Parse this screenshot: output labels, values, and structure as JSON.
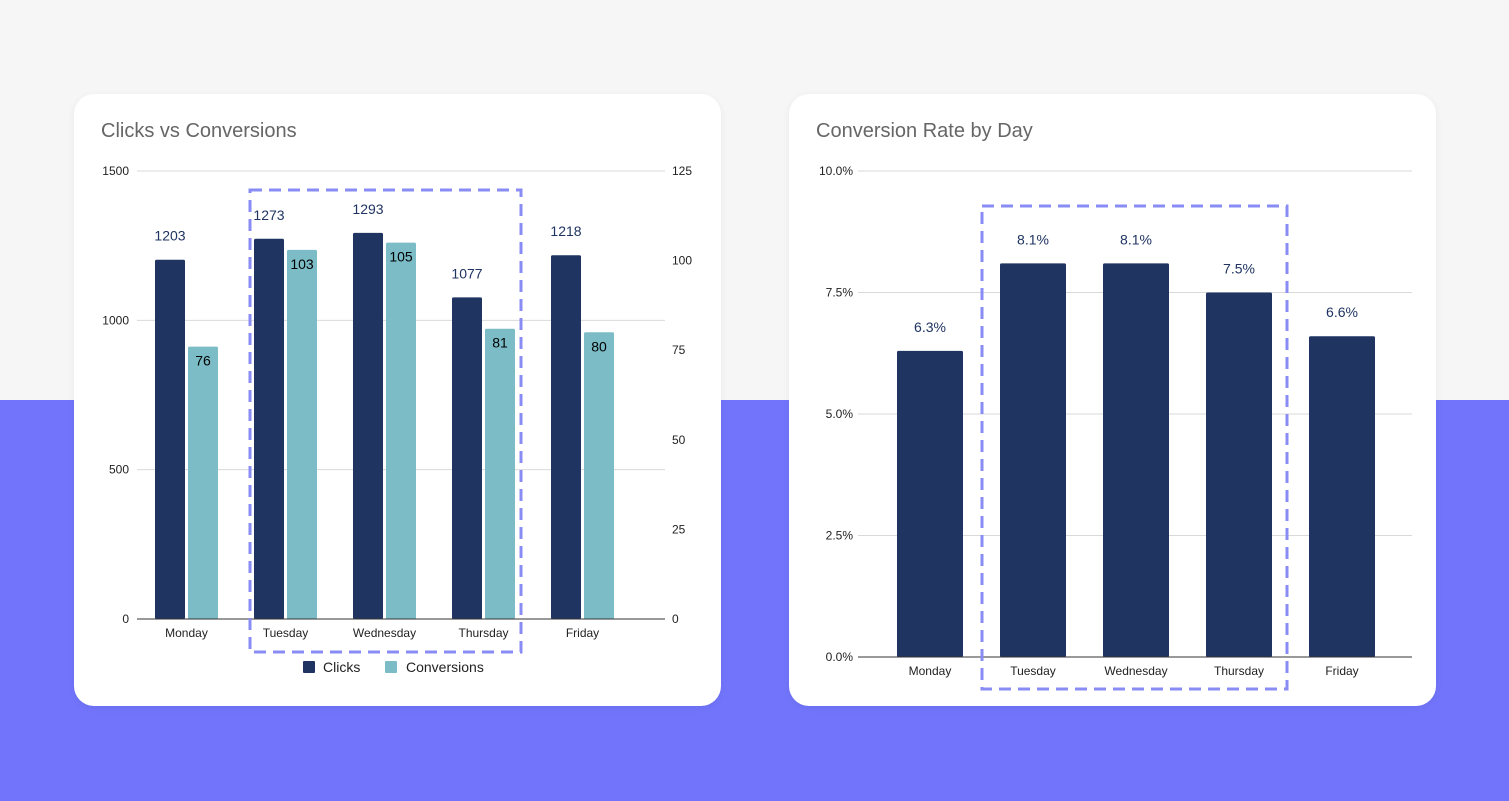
{
  "colors": {
    "page_top": "#f6f6f6",
    "page_bottom": "#7275fb",
    "clicks": "#1f3461",
    "conversions": "#7bbcc6",
    "rate": "#1f3461",
    "highlight": "#8a8cf6",
    "data_label": "#1f3461",
    "grid": "#d9d9d9"
  },
  "chart_data": [
    {
      "type": "bar",
      "title": "Clicks vs Conversions",
      "categories": [
        "Monday",
        "Tuesday",
        "Wednesday",
        "Thursday",
        "Friday"
      ],
      "series": [
        {
          "name": "Clicks",
          "axis": "left",
          "values": [
            1203,
            1273,
            1293,
            1077,
            1218
          ]
        },
        {
          "name": "Conversions",
          "axis": "right",
          "values": [
            76,
            103,
            105,
            81,
            80
          ]
        }
      ],
      "y_left": {
        "min": 0,
        "max": 1500,
        "ticks": [
          "0",
          "500",
          "1000",
          "1500"
        ]
      },
      "y_right": {
        "min": 0,
        "max": 125,
        "ticks": [
          "0",
          "25",
          "50",
          "75",
          "100",
          "125"
        ]
      },
      "grid": true,
      "legend": "bottom",
      "highlight": [
        "Tuesday",
        "Wednesday",
        "Thursday"
      ]
    },
    {
      "type": "bar",
      "title": "Conversion Rate by Day",
      "categories": [
        "Monday",
        "Tuesday",
        "Wednesday",
        "Thursday",
        "Friday"
      ],
      "series": [
        {
          "values": [
            6.3,
            8.1,
            8.1,
            7.5,
            6.6
          ],
          "labels": [
            "6.3%",
            "8.1%",
            "8.1%",
            "7.5%",
            "6.6%"
          ]
        }
      ],
      "y": {
        "min": 0,
        "max": 10,
        "ticks": [
          "0.0%",
          "2.5%",
          "5.0%",
          "7.5%",
          "10.0%"
        ]
      },
      "grid": true,
      "legend": "none",
      "highlight": [
        "Tuesday",
        "Wednesday",
        "Thursday"
      ]
    }
  ]
}
